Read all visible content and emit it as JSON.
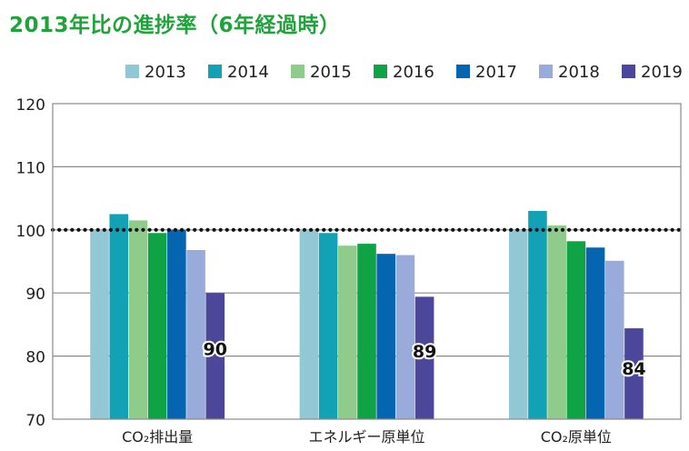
{
  "title": "2013年比の進捗率（6年経過時）",
  "chart_data": {
    "type": "bar",
    "title": "2013年比の進捗率（6年経過時）",
    "categories": [
      "CO₂排出量",
      "エネルギー原単位",
      "CO₂原単位"
    ],
    "series": [
      {
        "name": "2013",
        "color": "#92c8d4",
        "values": [
          100,
          100,
          100
        ]
      },
      {
        "name": "2014",
        "color": "#13a2b5",
        "values": [
          102.5,
          99.5,
          103
        ]
      },
      {
        "name": "2015",
        "color": "#8fcc8b",
        "values": [
          101.5,
          97.5,
          100.7
        ]
      },
      {
        "name": "2016",
        "color": "#10a345",
        "values": [
          99.5,
          97.8,
          98.2
        ]
      },
      {
        "name": "2017",
        "color": "#0665b1",
        "values": [
          100,
          96.2,
          97.2
        ]
      },
      {
        "name": "2018",
        "color": "#99abda",
        "values": [
          96.8,
          96,
          95.1
        ]
      },
      {
        "name": "2019",
        "color": "#4c479b",
        "values": [
          90,
          89.4,
          84.4
        ]
      }
    ],
    "data_labels": [
      {
        "category": 0,
        "series": 6,
        "text": "90"
      },
      {
        "category": 1,
        "series": 6,
        "text": "89"
      },
      {
        "category": 2,
        "series": 6,
        "text": "84"
      }
    ],
    "ylim": [
      70,
      120
    ],
    "yticks": [
      "70",
      "80",
      "90",
      "100",
      "110",
      "120"
    ],
    "reference_line": 100,
    "grid": true,
    "legend": "top-right",
    "xlabel": "",
    "ylabel": ""
  }
}
